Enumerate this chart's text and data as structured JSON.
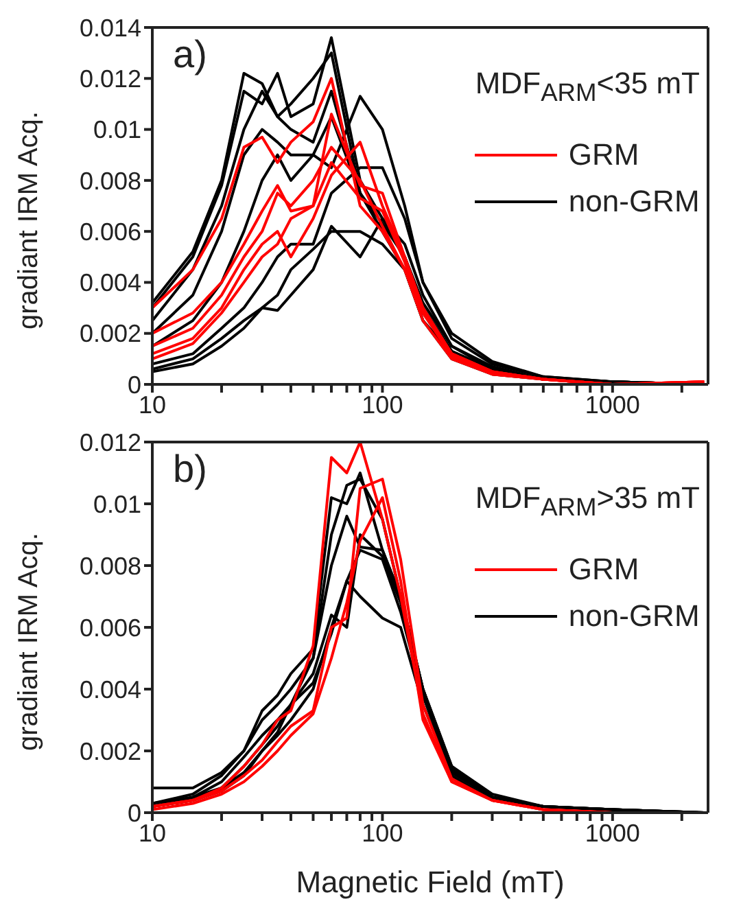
{
  "chart_data": [
    {
      "type": "line",
      "annotations": [
        "a)"
      ],
      "ylabel": "gradiant IRM Acq.",
      "legend_title": "MDF$_{ARM}$<35 mT",
      "legend": "top right",
      "grid": false,
      "log": "x",
      "x": [
        10,
        15,
        20,
        25,
        30,
        35,
        40,
        50,
        60,
        80,
        100,
        125,
        150,
        200,
        300,
        500,
        1000,
        2500
      ],
      "xlim": [
        10,
        2600
      ],
      "xticks": [
        10,
        {
          "value": 20,
          "label": null
        },
        {
          "value": 30,
          "label": null
        },
        {
          "value": 40,
          "label": null
        },
        {
          "value": 50,
          "label": null
        },
        {
          "value": 60,
          "label": null
        },
        {
          "value": 70,
          "label": null
        },
        {
          "value": 80,
          "label": null
        },
        {
          "value": 90,
          "label": null
        },
        100,
        {
          "value": 200,
          "label": null
        },
        {
          "value": 300,
          "label": null
        },
        {
          "value": 400,
          "label": null
        },
        {
          "value": 500,
          "label": null
        },
        {
          "value": 600,
          "label": null
        },
        {
          "value": 700,
          "label": null
        },
        {
          "value": 800,
          "label": null
        },
        {
          "value": 900,
          "label": null
        },
        1000,
        {
          "value": 2000,
          "label": null
        }
      ],
      "ylim": [
        0,
        0.014
      ],
      "yticks": [
        0,
        0.002,
        0.004,
        0.006,
        0.008,
        0.01,
        0.012,
        0.014
      ],
      "series": [
        {
          "name": "non-GRM",
          "color": "#000000",
          "values": [
            0.0032,
            0.0052,
            0.008,
            0.0122,
            0.0118,
            0.0105,
            0.01,
            0.0095,
            0.0115,
            0.0075,
            0.006,
            0.0045,
            0.0025,
            0.0012,
            0.0005,
            0.0002,
            0.0001,
            0
          ]
        },
        {
          "color": "#000000",
          "values": [
            0.003,
            0.005,
            0.0078,
            0.0115,
            0.011,
            0.0122,
            0.0105,
            0.011,
            0.0136,
            0.008,
            0.0065,
            0.005,
            0.003,
            0.0013,
            0.0006,
            0.0002,
            0.0001,
            0
          ]
        },
        {
          "color": "#000000",
          "values": [
            0.0025,
            0.0045,
            0.007,
            0.01,
            0.0115,
            0.0105,
            0.011,
            0.012,
            0.013,
            0.0075,
            0.006,
            0.0045,
            0.0025,
            0.001,
            0.0004,
            0.0002,
            0.0001,
            0
          ]
        },
        {
          "color": "#000000",
          "values": [
            0.0015,
            0.0025,
            0.004,
            0.006,
            0.008,
            0.009,
            0.008,
            0.009,
            0.0085,
            0.0113,
            0.01,
            0.007,
            0.004,
            0.0018,
            0.0008,
            0.0003,
            0.0001,
            0
          ]
        },
        {
          "color": "#000000",
          "values": [
            0.0008,
            0.0012,
            0.0022,
            0.003,
            0.004,
            0.005,
            0.0055,
            0.0055,
            0.0075,
            0.0085,
            0.0085,
            0.0065,
            0.004,
            0.002,
            0.0009,
            0.0003,
            0.0001,
            0
          ]
        },
        {
          "color": "#000000",
          "values": [
            0.0006,
            0.001,
            0.0018,
            0.0025,
            0.003,
            0.0029,
            0.0035,
            0.0045,
            0.0062,
            0.005,
            0.0065,
            0.0055,
            0.0035,
            0.0015,
            0.0007,
            0.0002,
            0.0001,
            0
          ]
        },
        {
          "color": "#000000",
          "values": [
            0.0005,
            0.0008,
            0.0015,
            0.0022,
            0.003,
            0.0035,
            0.0045,
            0.0053,
            0.006,
            0.006,
            0.0055,
            0.0045,
            0.003,
            0.0013,
            0.0006,
            0.0002,
            0.0001,
            0
          ]
        },
        {
          "color": "#000000",
          "values": [
            0.002,
            0.0035,
            0.006,
            0.009,
            0.01,
            0.0095,
            0.009,
            0.009,
            0.0105,
            0.0075,
            0.0063,
            0.005,
            0.0032,
            0.0015,
            0.0006,
            0.0002,
            0.0001,
            0
          ]
        },
        {
          "name": "GRM",
          "color": "#ff0000",
          "values": [
            0.003,
            0.0045,
            0.0065,
            0.0093,
            0.0097,
            0.0087,
            0.0095,
            0.0103,
            0.012,
            0.007,
            0.006,
            0.0045,
            0.0025,
            0.001,
            0.0004,
            0.0002,
            0,
            0.0001
          ]
        },
        {
          "color": "#ff0000",
          "values": [
            0.002,
            0.0028,
            0.004,
            0.0055,
            0.0068,
            0.0078,
            0.0068,
            0.007,
            0.0106,
            0.0078,
            0.0075,
            0.005,
            0.003,
            0.0012,
            0.0005,
            0.0002,
            0,
            0.0001
          ]
        },
        {
          "color": "#ff0000",
          "values": [
            0.0015,
            0.0022,
            0.0035,
            0.005,
            0.006,
            0.0075,
            0.007,
            0.008,
            0.0093,
            0.008,
            0.0062,
            0.0045,
            0.0028,
            0.0012,
            0.0005,
            0.0002,
            0,
            0.0001
          ]
        },
        {
          "color": "#ff0000",
          "values": [
            0.0012,
            0.0018,
            0.003,
            0.0045,
            0.0055,
            0.006,
            0.005,
            0.0065,
            0.0082,
            0.0095,
            0.007,
            0.005,
            0.003,
            0.0012,
            0.0005,
            0.0002,
            0,
            0.0001
          ]
        },
        {
          "color": "#ff0000",
          "values": [
            0.001,
            0.0016,
            0.0028,
            0.004,
            0.005,
            0.0055,
            0.0065,
            0.007,
            0.0087,
            0.0073,
            0.0068,
            0.0048,
            0.0028,
            0.0011,
            0.0004,
            0.0002,
            0,
            0.0001
          ]
        }
      ]
    },
    {
      "type": "line",
      "annotations": [
        "b)"
      ],
      "xlabel": "Magnetic Field (mT)",
      "ylabel": "gradiant IRM Acq.",
      "legend_title": "MDF$_{ARM}$>35 mT",
      "legend": "top right",
      "grid": false,
      "log": "x",
      "x": [
        10,
        15,
        20,
        25,
        30,
        35,
        40,
        50,
        60,
        70,
        80,
        100,
        120,
        150,
        200,
        300,
        500,
        1000,
        2500
      ],
      "xlim": [
        10,
        2600
      ],
      "xticks": [
        10,
        {
          "value": 20,
          "label": null
        },
        {
          "value": 30,
          "label": null
        },
        {
          "value": 40,
          "label": null
        },
        {
          "value": 50,
          "label": null
        },
        {
          "value": 60,
          "label": null
        },
        {
          "value": 70,
          "label": null
        },
        {
          "value": 80,
          "label": null
        },
        {
          "value": 90,
          "label": null
        },
        100,
        {
          "value": 200,
          "label": null
        },
        {
          "value": 300,
          "label": null
        },
        {
          "value": 400,
          "label": null
        },
        {
          "value": 500,
          "label": null
        },
        {
          "value": 600,
          "label": null
        },
        {
          "value": 700,
          "label": null
        },
        {
          "value": 800,
          "label": null
        },
        {
          "value": 900,
          "label": null
        },
        1000,
        {
          "value": 2000,
          "label": null
        }
      ],
      "ylim": [
        0,
        0.012
      ],
      "yticks": [
        0,
        0.002,
        0.004,
        0.006,
        0.008,
        0.01,
        0.012
      ],
      "series": [
        {
          "name": "non-GRM",
          "color": "#000000",
          "values": [
            0.0008,
            0.0008,
            0.0013,
            0.002,
            0.0033,
            0.0038,
            0.0045,
            0.0053,
            0.0102,
            0.01,
            0.011,
            0.0085,
            0.007,
            0.004,
            0.0015,
            0.0006,
            0.0002,
            0.0001,
            0
          ]
        },
        {
          "color": "#000000",
          "values": [
            0.0003,
            0.0005,
            0.001,
            0.0018,
            0.0025,
            0.003,
            0.0035,
            0.005,
            0.009,
            0.0106,
            0.0108,
            0.0095,
            0.007,
            0.004,
            0.0014,
            0.0005,
            0.0002,
            0.0001,
            0
          ]
        },
        {
          "color": "#000000",
          "values": [
            0.0002,
            0.0005,
            0.0008,
            0.0015,
            0.0022,
            0.0028,
            0.0035,
            0.0045,
            0.0064,
            0.006,
            0.009,
            0.0083,
            0.0068,
            0.0038,
            0.0013,
            0.0005,
            0.0002,
            0.0001,
            0
          ]
        },
        {
          "color": "#000000",
          "values": [
            0.0002,
            0.0004,
            0.0007,
            0.0012,
            0.002,
            0.0025,
            0.003,
            0.004,
            0.006,
            0.0075,
            0.007,
            0.0063,
            0.006,
            0.0035,
            0.0012,
            0.0004,
            0.0002,
            0.0001,
            0
          ]
        },
        {
          "color": "#000000",
          "values": [
            0.0003,
            0.0006,
            0.0012,
            0.002,
            0.003,
            0.0035,
            0.004,
            0.005,
            0.008,
            0.0096,
            0.0086,
            0.0085,
            0.007,
            0.004,
            0.0015,
            0.0005,
            0.0002,
            0.0001,
            0
          ]
        },
        {
          "color": "#000000",
          "values": [
            0.0002,
            0.0004,
            0.0008,
            0.0013,
            0.002,
            0.0026,
            0.0035,
            0.0042,
            0.0058,
            0.0075,
            0.0085,
            0.0082,
            0.0065,
            0.0038,
            0.0013,
            0.0005,
            0.0002,
            0.0001,
            0
          ]
        },
        {
          "name": "GRM",
          "color": "#ff0000",
          "values": [
            0.0002,
            0.0004,
            0.0008,
            0.0015,
            0.0022,
            0.003,
            0.0033,
            0.0054,
            0.0115,
            0.011,
            0.012,
            0.0095,
            0.007,
            0.0032,
            0.001,
            0.0004,
            0.0001,
            0,
            0
          ]
        },
        {
          "color": "#ff0000",
          "values": [
            0.0002,
            0.0004,
            0.0007,
            0.0012,
            0.0017,
            0.0023,
            0.0028,
            0.0033,
            0.006,
            0.0063,
            0.0105,
            0.0108,
            0.0082,
            0.0035,
            0.0011,
            0.0004,
            0.0001,
            0,
            0
          ]
        },
        {
          "color": "#ff0000",
          "values": [
            0.0001,
            0.0003,
            0.0006,
            0.001,
            0.0015,
            0.002,
            0.0025,
            0.0032,
            0.005,
            0.0068,
            0.0088,
            0.0102,
            0.0075,
            0.003,
            0.001,
            0.0004,
            0.0001,
            0,
            0
          ]
        }
      ]
    }
  ]
}
